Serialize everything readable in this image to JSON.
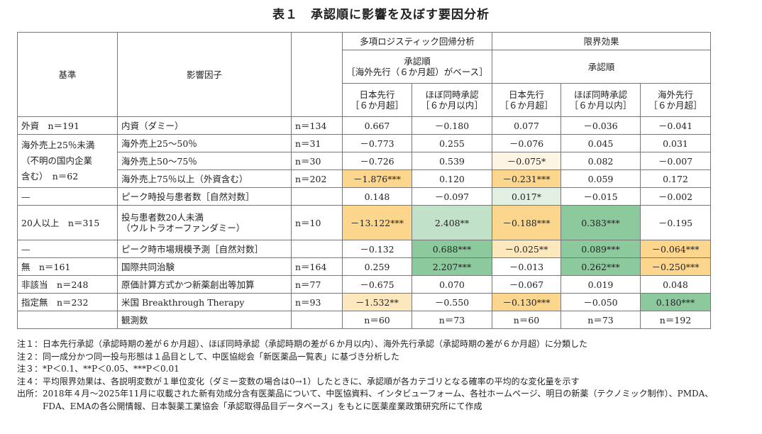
{
  "title": "表１　承認順に影響を及ぼす要因分析",
  "colors": {
    "orange": "#fbd68c",
    "light_orange": "#fde7bd",
    "pale_orange": "#fdf4e4",
    "green": "#8cc99c",
    "light_green": "#c1e2c8",
    "pale_green": "#e1f0e3"
  },
  "header": {
    "base": "基準",
    "factor": "影響因子",
    "mlogit": "多項ロジスティック回帰分析",
    "marginal": "限界効果",
    "mlogit_sub1": "承認順",
    "mlogit_sub2": "［海外先行（６か月超）がベース］",
    "marginal_sub": "承認順",
    "cols": [
      {
        "l1": "日本先行",
        "l2": "［６か月超］"
      },
      {
        "l1": "ほぼ同時承認",
        "l2": "［６か月以内］"
      },
      {
        "l1": "日本先行",
        "l2": "［６か月超］"
      },
      {
        "l1": "ほぼ同時承認",
        "l2": "［６か月以内］"
      },
      {
        "l1": "海外先行",
        "l2": "［６か月超］"
      }
    ]
  },
  "rows": [
    {
      "base": "外資　n＝191",
      "factor": "内資（ダミー）",
      "n": "n＝134",
      "vals": [
        {
          "v": "0.667"
        },
        {
          "v": "－0.180"
        },
        {
          "v": "0.077"
        },
        {
          "v": "－0.036"
        },
        {
          "v": "－0.041"
        }
      ]
    },
    {
      "base": "海外売上25％未満\n（不明の国内企業\n含む）　n＝62",
      "rowspan": 3,
      "factor": "海外売上25～50％",
      "n": "n＝31",
      "vals": [
        {
          "v": "－0.773"
        },
        {
          "v": "0.255"
        },
        {
          "v": "－0.076"
        },
        {
          "v": "0.045"
        },
        {
          "v": "0.031"
        }
      ]
    },
    {
      "factor": "海外売上50～75％",
      "n": "n＝30",
      "vals": [
        {
          "v": "－0.726"
        },
        {
          "v": "0.539"
        },
        {
          "v": "－0.075*",
          "c": "pale_orange"
        },
        {
          "v": "0.082"
        },
        {
          "v": "－0.007"
        }
      ]
    },
    {
      "factor": "海外売上75％以上（外資含む）",
      "n": "n＝202",
      "vals": [
        {
          "v": "－1.876***",
          "c": "orange"
        },
        {
          "v": "0.120"
        },
        {
          "v": "－0.231***",
          "c": "orange"
        },
        {
          "v": "0.059"
        },
        {
          "v": "0.172"
        }
      ]
    },
    {
      "base": "—",
      "factor": "ピーク時投与患者数［自然対数］",
      "n": "",
      "vals": [
        {
          "v": "0.148"
        },
        {
          "v": "－0.097"
        },
        {
          "v": "0.017*",
          "c": "pale_green"
        },
        {
          "v": "－0.015"
        },
        {
          "v": "－0.002"
        }
      ]
    },
    {
      "base": "20人以上　n＝315",
      "factor": "投与患者数20人未満\n（ウルトラオーファンダミー）",
      "tall": true,
      "n": "n＝10",
      "vals": [
        {
          "v": "－13.122***",
          "c": "orange"
        },
        {
          "v": "2.408**",
          "c": "light_green"
        },
        {
          "v": "－0.188***",
          "c": "orange"
        },
        {
          "v": "0.383***",
          "c": "green"
        },
        {
          "v": "－0.195"
        }
      ]
    },
    {
      "base": "—",
      "factor": "ピーク時市場規模予測［自然対数］",
      "n": "",
      "vals": [
        {
          "v": "－0.132"
        },
        {
          "v": "0.688***",
          "c": "green"
        },
        {
          "v": "－0.025**",
          "c": "light_orange"
        },
        {
          "v": "0.089***",
          "c": "green"
        },
        {
          "v": "－0.064***",
          "c": "orange"
        }
      ]
    },
    {
      "base": "無　n＝161",
      "factor": "国際共同治験",
      "n": "n＝164",
      "vals": [
        {
          "v": "0.259"
        },
        {
          "v": "2.207***",
          "c": "green"
        },
        {
          "v": "－0.013"
        },
        {
          "v": "0.262***",
          "c": "green"
        },
        {
          "v": "－0.250***",
          "c": "orange"
        }
      ]
    },
    {
      "base": "非該当　n＝248",
      "factor": "原価計算方式かつ新薬創出等加算",
      "n": "n＝77",
      "vals": [
        {
          "v": "－0.675"
        },
        {
          "v": "0.070"
        },
        {
          "v": "－0.067"
        },
        {
          "v": "0.019"
        },
        {
          "v": "0.048"
        }
      ]
    },
    {
      "base": "指定無　n＝232",
      "factor": "米国 Breakthrough Therapy",
      "n": "n＝93",
      "vals": [
        {
          "v": "－1.532**",
          "c": "light_orange"
        },
        {
          "v": "－0.550"
        },
        {
          "v": "－0.130***",
          "c": "orange"
        },
        {
          "v": "－0.050"
        },
        {
          "v": "0.180***",
          "c": "green"
        }
      ]
    },
    {
      "base": "",
      "factor": "観測数",
      "n": "",
      "vals": [
        {
          "v": "n＝60"
        },
        {
          "v": "n＝73"
        },
        {
          "v": "n＝60"
        },
        {
          "v": "n＝73"
        },
        {
          "v": "n＝192"
        }
      ]
    }
  ],
  "notes": [
    {
      "label": "注１：",
      "text": "日本先行承認（承認時期の差が６か月超）、ほぼ同時承認（承認時期の差が６か月以内）、海外先行承認（承認時期の差が６か月超）に分類した"
    },
    {
      "label": "注２：",
      "text": "同一成分かつ同一投与形態は１品目として、中医協総会「新医薬品一覧表」に基づき分析した"
    },
    {
      "label": "注３：",
      "text": "*P＜0.1、**P＜0.05、***P＜0.01"
    },
    {
      "label": "注４：",
      "text": "平均限界効果は、各説明変数が１単位変化（ダミー変数の場合は0→1）したときに、承認順が各カテゴリとなる確率の平均的な変化量を示す"
    },
    {
      "label": "出所：",
      "text": "2018年４月～2025年11月に収載された新有効成分含有医薬品について、中医協資料、インタビューフォーム、各社ホームページ、明日の新薬（テクノミック制作）、PMDA、FDA、EMAの各公開情報、日本製薬工業協会「承認取得品目データベース」をもとに医薬産業政策研究所にて作成"
    }
  ]
}
